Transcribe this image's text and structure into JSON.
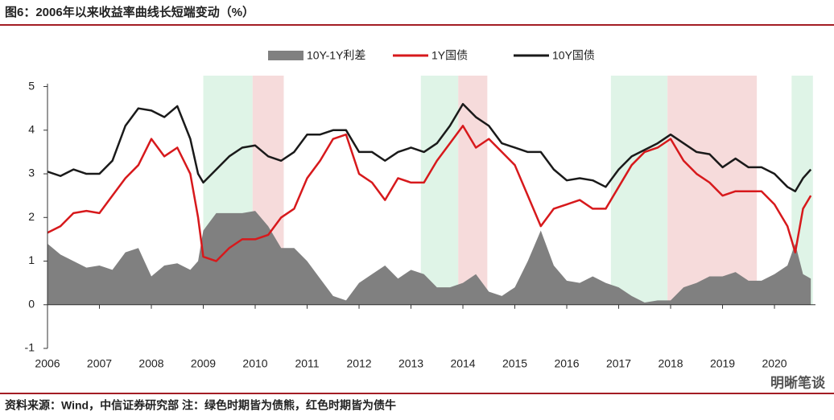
{
  "chart_data": {
    "type": "line",
    "title": "图6：2006年以来收益率曲线长短端变动（%）",
    "source": "资料来源：Wind，中信证券研究部 注：绿色时期皆为债熊，红色时期皆为债牛",
    "watermark": "明晰笔谈",
    "x": [
      2006.0,
      2006.25,
      2006.5,
      2006.75,
      2007.0,
      2007.25,
      2007.5,
      2007.75,
      2008.0,
      2008.25,
      2008.5,
      2008.75,
      2008.9,
      2009.0,
      2009.25,
      2009.5,
      2009.75,
      2010.0,
      2010.25,
      2010.5,
      2010.75,
      2011.0,
      2011.25,
      2011.5,
      2011.75,
      2012.0,
      2012.25,
      2012.5,
      2012.75,
      2013.0,
      2013.25,
      2013.5,
      2013.75,
      2014.0,
      2014.25,
      2014.5,
      2014.75,
      2015.0,
      2015.25,
      2015.5,
      2015.75,
      2016.0,
      2016.25,
      2016.5,
      2016.75,
      2017.0,
      2017.25,
      2017.5,
      2017.75,
      2018.0,
      2018.25,
      2018.5,
      2018.75,
      2019.0,
      2019.25,
      2019.5,
      2019.75,
      2020.0,
      2020.25,
      2020.4,
      2020.55,
      2020.7
    ],
    "series": [
      {
        "name": "10Y-1Y利差",
        "color": "#808080",
        "kind": "area",
        "values": [
          1.4,
          1.15,
          1.0,
          0.85,
          0.9,
          0.8,
          1.2,
          1.3,
          0.65,
          0.9,
          0.95,
          0.8,
          1.0,
          1.7,
          2.1,
          2.1,
          2.1,
          2.15,
          1.8,
          1.3,
          1.3,
          1.0,
          0.6,
          0.2,
          0.1,
          0.5,
          0.7,
          0.9,
          0.6,
          0.8,
          0.7,
          0.4,
          0.4,
          0.5,
          0.7,
          0.3,
          0.2,
          0.4,
          1.0,
          1.7,
          0.9,
          0.55,
          0.5,
          0.65,
          0.5,
          0.4,
          0.2,
          0.05,
          0.1,
          0.1,
          0.4,
          0.5,
          0.65,
          0.65,
          0.75,
          0.55,
          0.55,
          0.7,
          0.9,
          1.4,
          0.7,
          0.6
        ]
      },
      {
        "name": "1Y国债",
        "color": "#d7191c",
        "kind": "line",
        "values": [
          1.65,
          1.8,
          2.1,
          2.15,
          2.1,
          2.5,
          2.9,
          3.2,
          3.8,
          3.4,
          3.6,
          3.0,
          2.0,
          1.1,
          1.0,
          1.3,
          1.5,
          1.5,
          1.6,
          2.0,
          2.2,
          2.9,
          3.3,
          3.8,
          3.9,
          3.0,
          2.8,
          2.4,
          2.9,
          2.8,
          2.8,
          3.3,
          3.7,
          4.1,
          3.6,
          3.8,
          3.5,
          3.2,
          2.5,
          1.8,
          2.2,
          2.3,
          2.4,
          2.2,
          2.2,
          2.7,
          3.2,
          3.5,
          3.6,
          3.8,
          3.3,
          3.0,
          2.8,
          2.5,
          2.6,
          2.6,
          2.6,
          2.3,
          1.8,
          1.2,
          2.2,
          2.5
        ]
      },
      {
        "name": "10Y国债",
        "color": "#1a1a1a",
        "kind": "line",
        "values": [
          3.05,
          2.95,
          3.1,
          3.0,
          3.0,
          3.3,
          4.1,
          4.5,
          4.45,
          4.3,
          4.55,
          3.8,
          3.0,
          2.8,
          3.1,
          3.4,
          3.6,
          3.65,
          3.4,
          3.3,
          3.5,
          3.9,
          3.9,
          4.0,
          4.0,
          3.5,
          3.5,
          3.3,
          3.5,
          3.6,
          3.5,
          3.7,
          4.1,
          4.6,
          4.3,
          4.1,
          3.7,
          3.6,
          3.5,
          3.5,
          3.1,
          2.85,
          2.9,
          2.85,
          2.7,
          3.1,
          3.4,
          3.55,
          3.7,
          3.9,
          3.7,
          3.5,
          3.45,
          3.15,
          3.35,
          3.15,
          3.15,
          3.0,
          2.7,
          2.6,
          2.9,
          3.1
        ]
      }
    ],
    "shaded_periods": [
      {
        "start": 2009.0,
        "end": 2009.95,
        "color": "#d9f2e3"
      },
      {
        "start": 2009.95,
        "end": 2010.55,
        "color": "#f5d5d5"
      },
      {
        "start": 2013.19,
        "end": 2013.91,
        "color": "#d9f2e3"
      },
      {
        "start": 2013.91,
        "end": 2014.47,
        "color": "#f5d5d5"
      },
      {
        "start": 2016.85,
        "end": 2017.94,
        "color": "#d9f2e3"
      },
      {
        "start": 2017.94,
        "end": 2019.66,
        "color": "#f5d5d5"
      },
      {
        "start": 2020.33,
        "end": 2020.74,
        "color": "#d9f2e3"
      }
    ],
    "xlim": [
      2006,
      2020.79
    ],
    "xticks": [
      2006,
      2007,
      2008,
      2009,
      2010,
      2011,
      2012,
      2013,
      2014,
      2015,
      2016,
      2017,
      2018,
      2019,
      2020
    ],
    "ylim": [
      -1,
      5.25
    ],
    "yticks": [
      -1,
      0,
      1,
      2,
      3,
      4,
      5
    ]
  }
}
